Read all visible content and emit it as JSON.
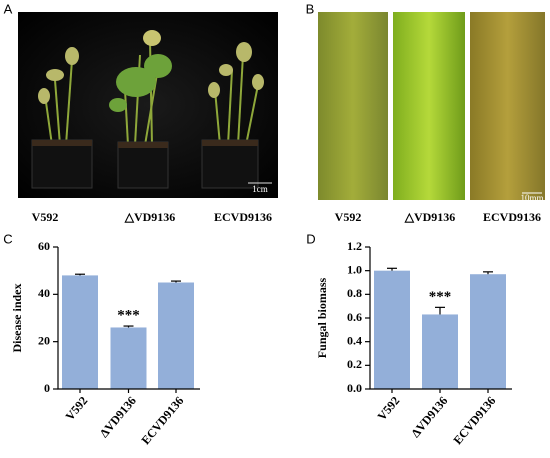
{
  "photos": [
    {
      "panel_label": "A",
      "captions": [
        "V592",
        "△VD9136",
        "ECVD9136"
      ],
      "scale_label": "1cm"
    },
    {
      "panel_label": "B",
      "captions": [
        "V592",
        "△VD9136",
        "ECVD9136"
      ],
      "scale_label": "10mm"
    }
  ],
  "chart_data": [
    {
      "type": "bar",
      "panel_label": "C",
      "y_label": "Disease index",
      "categories": [
        "V592",
        "ΔVD9136",
        "ECVD9136"
      ],
      "values": [
        48,
        26,
        45
      ],
      "errors": [
        0.5,
        0.6,
        0.6
      ],
      "color": "#93afd9",
      "annotation": "***",
      "annotation_index": 1,
      "ylim": [
        0,
        60
      ],
      "yticks": [
        0,
        20,
        40,
        60
      ]
    },
    {
      "type": "bar",
      "panel_label": "D",
      "y_label": "Fungal biomass",
      "categories": [
        "V592",
        "ΔVD9136",
        "ECVD9136"
      ],
      "values": [
        1.0,
        0.63,
        0.97
      ],
      "errors": [
        0.02,
        0.06,
        0.02
      ],
      "color": "#93afd9",
      "annotation": "***",
      "annotation_index": 1,
      "ylim": [
        0,
        1.2
      ],
      "yticks": [
        {
          "value": 0,
          "label": "0.0"
        },
        0.2,
        0.4,
        0.6,
        0.8,
        {
          "value": 1,
          "label": "1.0"
        },
        1.2
      ]
    }
  ]
}
